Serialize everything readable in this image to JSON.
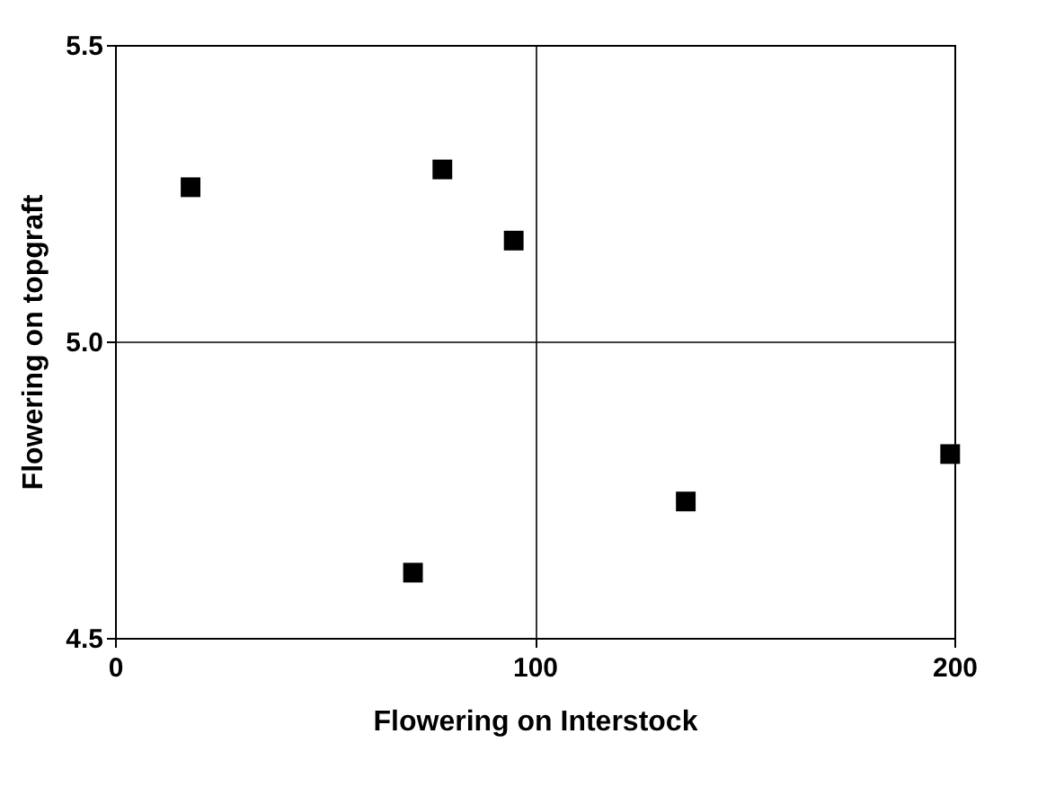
{
  "chart_data": {
    "type": "scatter",
    "xlabel": "Flowering on Interstock",
    "ylabel": "Flowering on topgraft",
    "x": [
      18,
      78,
      95,
      71,
      136,
      199
    ],
    "values": [
      5.26,
      5.29,
      5.17,
      4.61,
      4.73,
      4.81
    ],
    "color": "#000000",
    "marker": "square",
    "xlim": [
      0,
      200
    ],
    "xticks": [
      0,
      100,
      200
    ],
    "ylim": [
      4.5,
      5.5
    ],
    "yticks": [
      4.5,
      {
        "value": 5,
        "label": "5.0"
      },
      5.5
    ],
    "grid": true
  }
}
